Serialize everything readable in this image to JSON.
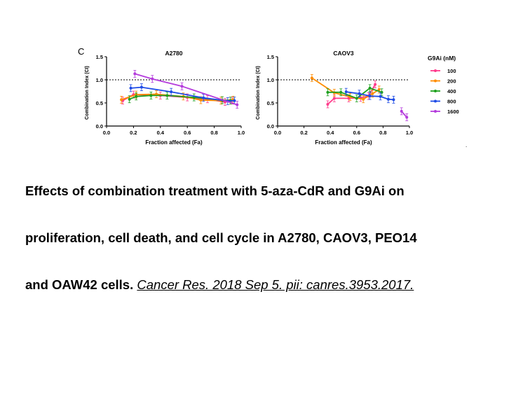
{
  "figure": {
    "panel_label": "C",
    "legend_title": "G9Ai (nM)"
  },
  "chart_data": [
    {
      "type": "line",
      "title": "A2780",
      "xlabel": "Fraction affected (Fa)",
      "ylabel": "Combination Index (CI)",
      "xlim": [
        0.0,
        1.0
      ],
      "ylim": [
        0.0,
        1.5
      ],
      "xticks": [
        "0.0",
        "0.2",
        "0.4",
        "0.6",
        "0.8",
        "1.0"
      ],
      "yticks": [
        "0.0",
        "0.5",
        "1.0",
        "1.5"
      ],
      "reference_line": 1.0,
      "legend": "right",
      "series": [
        {
          "name": "100",
          "color": "#ff3c8c",
          "points": [
            [
              0.12,
              0.55
            ],
            [
              0.2,
              0.68
            ],
            [
              0.4,
              0.66
            ],
            [
              0.6,
              0.62
            ],
            [
              0.75,
              0.58
            ],
            [
              0.88,
              0.52
            ],
            [
              0.93,
              0.55
            ]
          ]
        },
        {
          "name": "200",
          "color": "#ff8c00",
          "points": [
            [
              0.11,
              0.57
            ],
            [
              0.22,
              0.68
            ],
            [
              0.37,
              0.69
            ],
            [
              0.57,
              0.64
            ],
            [
              0.7,
              0.56
            ],
            [
              0.85,
              0.55
            ],
            [
              0.94,
              0.57
            ]
          ]
        },
        {
          "name": "400",
          "color": "#1ea01e",
          "points": [
            [
              0.17,
              0.58
            ],
            [
              0.22,
              0.64
            ],
            [
              0.33,
              0.66
            ],
            [
              0.45,
              0.66
            ],
            [
              0.65,
              0.62
            ],
            [
              0.86,
              0.56
            ],
            [
              0.92,
              0.55
            ]
          ]
        },
        {
          "name": "800",
          "color": "#1e4be6",
          "points": [
            [
              0.18,
              0.82
            ],
            [
              0.26,
              0.84
            ],
            [
              0.48,
              0.74
            ],
            [
              0.72,
              0.61
            ],
            [
              0.9,
              0.54
            ],
            [
              0.95,
              0.55
            ]
          ]
        },
        {
          "name": "1600",
          "color": "#b43cdc",
          "points": [
            [
              0.21,
              1.13
            ],
            [
              0.34,
              1.02
            ],
            [
              0.56,
              0.86
            ],
            [
              0.97,
              0.46
            ]
          ]
        }
      ]
    },
    {
      "type": "line",
      "title": "CAOV3",
      "xlabel": "Fraction affected (Fa)",
      "ylabel": "Combination Index (CI)",
      "xlim": [
        0.0,
        1.0
      ],
      "ylim": [
        0.0,
        1.5
      ],
      "xticks": [
        "0.0",
        "0.2",
        "0.4",
        "0.6",
        "0.8",
        "1.0"
      ],
      "yticks": [
        "0.0",
        "0.5",
        "1.0",
        "1.5"
      ],
      "reference_line": 1.0,
      "series": [
        {
          "name": "100",
          "color": "#ff3c8c",
          "points": [
            [
              0.38,
              0.47
            ],
            [
              0.43,
              0.6
            ],
            [
              0.54,
              0.6
            ],
            [
              0.63,
              0.61
            ],
            [
              0.69,
              0.65
            ],
            [
              0.74,
              0.9
            ]
          ]
        },
        {
          "name": "200",
          "color": "#ff8c00",
          "points": [
            [
              0.26,
              1.04
            ],
            [
              0.43,
              0.72
            ],
            [
              0.55,
              0.63
            ],
            [
              0.65,
              0.58
            ],
            [
              0.72,
              0.7
            ],
            [
              0.77,
              0.79
            ]
          ]
        },
        {
          "name": "400",
          "color": "#1ea01e",
          "points": [
            [
              0.38,
              0.73
            ],
            [
              0.48,
              0.73
            ],
            [
              0.6,
              0.6
            ],
            [
              0.7,
              0.82
            ],
            [
              0.79,
              0.73
            ]
          ]
        },
        {
          "name": "800",
          "color": "#1e4be6",
          "points": [
            [
              0.52,
              0.74
            ],
            [
              0.62,
              0.7
            ],
            [
              0.7,
              0.65
            ],
            [
              0.78,
              0.64
            ],
            [
              0.84,
              0.58
            ],
            [
              0.88,
              0.57
            ]
          ]
        },
        {
          "name": "1600",
          "color": "#b43cdc",
          "points": [
            [
              0.94,
              0.32
            ],
            [
              0.98,
              0.19
            ]
          ]
        }
      ]
    }
  ],
  "caption": {
    "line1": "Effects of combination treatment with 5-aza-CdR and G9Ai on",
    "line2": "proliferation, cell death, and cell cycle in A2780, CAOV3, PEO14",
    "line3_text": "and OAW42 cells. ",
    "citation": "Cancer Res. 2018 Sep 5. pii: canres.3953.2017."
  }
}
